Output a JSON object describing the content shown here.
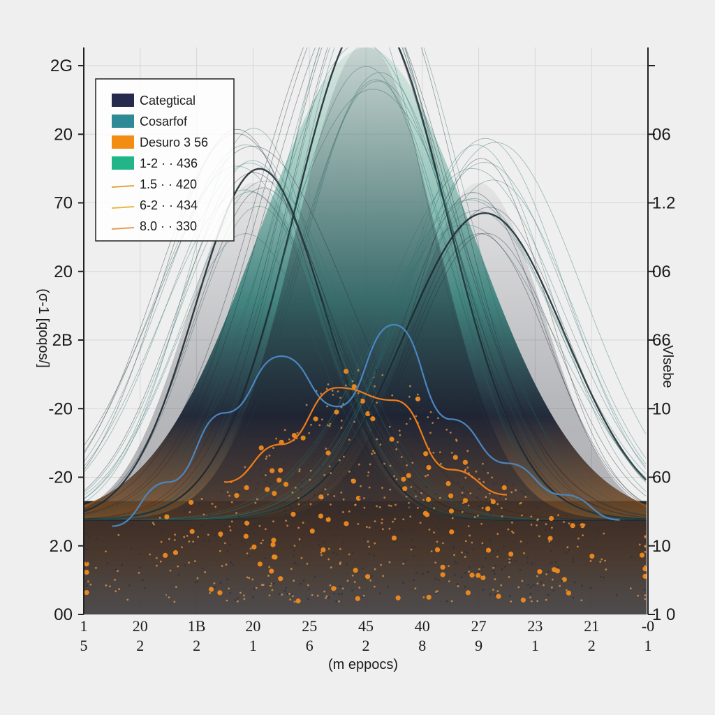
{
  "chart_data": {
    "type": "area",
    "title": "",
    "xlabel": "(m eppocs)",
    "ylabel_left": "(σ-1 [qoqos/]",
    "ylabel_right": "Vlsebe",
    "x_ticks_top": [
      "1",
      "20",
      "1B",
      "20",
      "25",
      "45",
      "40",
      "27",
      "23",
      "21",
      "-0"
    ],
    "x_ticks_bottom": [
      "5",
      "2",
      "2",
      "1",
      "6",
      "2",
      "8",
      "9",
      "1",
      "2",
      "1"
    ],
    "y_ticks_left": [
      "2G",
      "20",
      "70",
      "20",
      "2B",
      "-20",
      "-20",
      "2.0",
      "00"
    ],
    "y_ticks_right": [
      "",
      "06",
      "1.2",
      "06",
      "66",
      "10",
      "60",
      "10",
      "1 0"
    ],
    "grid": true,
    "legend_position": "top-left",
    "legend": [
      {
        "label": "Categtical",
        "color": "#262a4e",
        "kind": "patch"
      },
      {
        "label": "Cosarfof",
        "color": "#2e8a96",
        "kind": "patch"
      },
      {
        "label": "Desuro 3 56",
        "color": "#f28c12",
        "kind": "patch"
      },
      {
        "label": "1-2   ·  ·  436",
        "color": "#22b587",
        "kind": "patch"
      },
      {
        "label": "1.5   ·  ·  420",
        "color": "#e2a43a",
        "kind": "line"
      },
      {
        "label": "6-2   ·  ·  434",
        "color": "#e7b740",
        "kind": "line"
      },
      {
        "label": "8.0   ·  ·  330",
        "color": "#e89a55",
        "kind": "line"
      }
    ],
    "series": [
      {
        "name": "Categtical",
        "color": "#1c1f33",
        "style": "stacked-peaks",
        "peaks": [
          {
            "x": 5,
            "height": 8.9,
            "width": 1.55
          },
          {
            "x": 3,
            "height": 6.3,
            "width": 1.45
          },
          {
            "x": 7,
            "height": 6.3,
            "width": 1.45
          }
        ]
      },
      {
        "name": "Cosarfof",
        "color": "#2e8a80",
        "style": "gradient-fill",
        "peaks": [
          {
            "x": 5,
            "height": 7.5,
            "width": 1.9
          }
        ]
      },
      {
        "name": "1-2",
        "color": "#4a86c0",
        "style": "line",
        "x": [
          0.5,
          1.5,
          2.5,
          3.5,
          4.5,
          5.5,
          6.5,
          7.5,
          8.5,
          9.5
        ],
        "y": [
          1.4,
          2.1,
          3.2,
          4.1,
          3.3,
          4.6,
          3.1,
          2.4,
          1.9,
          1.5
        ]
      },
      {
        "name": "Desuro 3 56",
        "color": "#f07c1a",
        "style": "line",
        "x": [
          2.5,
          3.5,
          4.5,
          5.5,
          6.5,
          7.5
        ],
        "y": [
          2.1,
          2.7,
          3.6,
          3.4,
          2.3,
          1.9
        ]
      },
      {
        "name": "scatter",
        "color": "#f08a1e",
        "style": "scatter-density",
        "center_x": 5,
        "spread": 2.2
      }
    ],
    "xlim": [
      0,
      10
    ],
    "ylim": [
      0,
      9
    ]
  }
}
